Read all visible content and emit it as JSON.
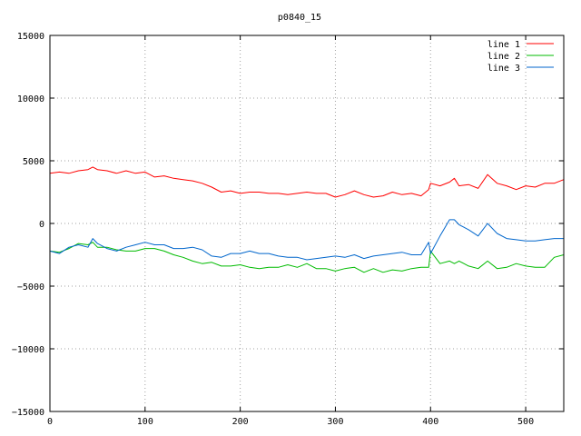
{
  "chart_data": {
    "type": "line",
    "title": "p0840_15",
    "xlabel": "",
    "ylabel": "",
    "xlim": [
      0,
      540
    ],
    "ylim": [
      -15000,
      15000
    ],
    "xticks": [
      0,
      100,
      200,
      300,
      400,
      500
    ],
    "yticks": [
      -15000,
      -10000,
      -5000,
      0,
      5000,
      10000,
      15000
    ],
    "xtick_labels": [
      "0",
      "100",
      "200",
      "300",
      "400",
      "500"
    ],
    "ytick_labels": [
      "−15000",
      "−10000",
      "−5000",
      "0",
      "5000",
      "10000",
      "15000"
    ],
    "grid": true,
    "legend": "top-right",
    "x": [
      0,
      10,
      20,
      30,
      40,
      45,
      50,
      60,
      70,
      80,
      90,
      100,
      110,
      120,
      130,
      140,
      150,
      160,
      170,
      180,
      190,
      200,
      210,
      220,
      230,
      240,
      250,
      260,
      270,
      280,
      290,
      300,
      310,
      320,
      330,
      340,
      350,
      360,
      370,
      380,
      390,
      398,
      400,
      410,
      420,
      425,
      430,
      440,
      450,
      460,
      470,
      480,
      490,
      500,
      510,
      520,
      530,
      540
    ],
    "series": [
      {
        "name": "line 1",
        "color": "#ff0000",
        "values": [
          4000,
          4100,
          4000,
          4200,
          4300,
          4500,
          4300,
          4200,
          4000,
          4200,
          4000,
          4100,
          3700,
          3800,
          3600,
          3500,
          3400,
          3200,
          2900,
          2500,
          2600,
          2400,
          2500,
          2500,
          2400,
          2400,
          2300,
          2400,
          2500,
          2400,
          2400,
          2100,
          2300,
          2600,
          2300,
          2100,
          2200,
          2500,
          2300,
          2400,
          2200,
          2700,
          3200,
          3000,
          3300,
          3600,
          3000,
          3100,
          2800,
          3900,
          3200,
          3000,
          2700,
          3000,
          2900,
          3200,
          3200,
          3500
        ]
      },
      {
        "name": "line 2",
        "color": "#00bb00",
        "values": [
          -2200,
          -2300,
          -2000,
          -1600,
          -1700,
          -1500,
          -1900,
          -1900,
          -2100,
          -2200,
          -2200,
          -2000,
          -2000,
          -2200,
          -2500,
          -2700,
          -3000,
          -3200,
          -3100,
          -3400,
          -3400,
          -3300,
          -3500,
          -3600,
          -3500,
          -3500,
          -3300,
          -3500,
          -3200,
          -3600,
          -3600,
          -3800,
          -3600,
          -3500,
          -3900,
          -3600,
          -3900,
          -3700,
          -3800,
          -3600,
          -3500,
          -3500,
          -2200,
          -3200,
          -3000,
          -3200,
          -3000,
          -3400,
          -3600,
          -3000,
          -3600,
          -3500,
          -3200,
          -3400,
          -3500,
          -3500,
          -2700,
          -2500
        ]
      },
      {
        "name": "line 3",
        "color": "#0066cc",
        "values": [
          -2200,
          -2400,
          -1900,
          -1700,
          -1900,
          -1200,
          -1600,
          -2000,
          -2200,
          -1900,
          -1700,
          -1500,
          -1700,
          -1700,
          -2000,
          -2000,
          -1900,
          -2100,
          -2600,
          -2700,
          -2400,
          -2400,
          -2200,
          -2400,
          -2400,
          -2600,
          -2700,
          -2700,
          -2900,
          -2800,
          -2700,
          -2600,
          -2700,
          -2500,
          -2800,
          -2600,
          -2500,
          -2400,
          -2300,
          -2500,
          -2500,
          -1500,
          -2400,
          -1000,
          300,
          300,
          -100,
          -500,
          -1000,
          0,
          -800,
          -1200,
          -1300,
          -1400,
          -1400,
          -1300,
          -1200,
          -1200
        ]
      }
    ]
  }
}
